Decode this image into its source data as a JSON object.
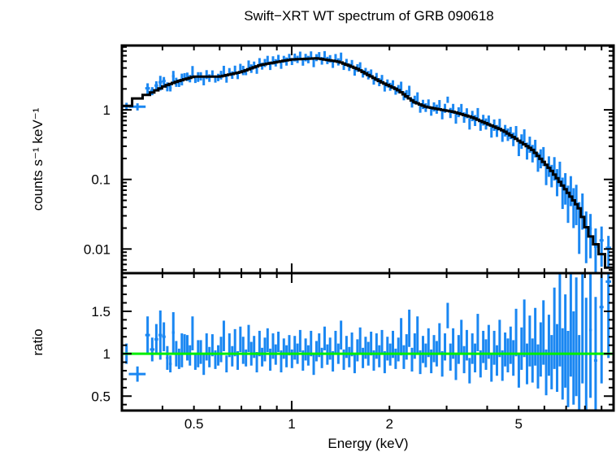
{
  "chart_data": {
    "type": "scatter",
    "title": "Swift−XRT WT spectrum of GRB 090618",
    "colors": {
      "data": "#1a87f2",
      "model": "#000000",
      "ratio_line": "#00ee00",
      "frame": "#000000"
    },
    "xlabel": "Energy (keV)",
    "xscale": "log",
    "xlim": [
      0.3,
      9.8
    ],
    "x_ticks": [
      {
        "value": 0.5,
        "label": "0.5"
      },
      {
        "value": 1,
        "label": "1"
      },
      {
        "value": 2,
        "label": "2"
      },
      {
        "value": 5,
        "label": "5"
      }
    ],
    "panels": [
      {
        "name": "spectrum",
        "ylabel": "counts s⁻¹ keV⁻¹",
        "yscale": "log",
        "ylim": [
          0.0045,
          8.4
        ],
        "y_ticks": [
          {
            "value": 1,
            "label": "1"
          },
          {
            "value": 0.1,
            "label": "0.1"
          },
          {
            "value": 0.01,
            "label": "0.01"
          }
        ],
        "model": {
          "name": "model",
          "style": "step",
          "points": [
            [
              0.3,
              1.0
            ],
            [
              0.33,
              1.42
            ],
            [
              0.37,
              1.76
            ],
            [
              0.41,
              2.24
            ],
            [
              0.45,
              2.6
            ],
            [
              0.5,
              3.0
            ],
            [
              0.6,
              3.0
            ],
            [
              0.7,
              3.5
            ],
            [
              0.8,
              4.4
            ],
            [
              1.0,
              5.3
            ],
            [
              1.2,
              5.5
            ],
            [
              1.4,
              4.9
            ],
            [
              1.59,
              3.9
            ],
            [
              1.89,
              2.5
            ],
            [
              2.12,
              1.95
            ],
            [
              2.38,
              1.3
            ],
            [
              2.6,
              1.1
            ],
            [
              3.17,
              0.93
            ],
            [
              3.6,
              0.78
            ],
            [
              4.5,
              0.5
            ],
            [
              5.5,
              0.27
            ],
            [
              6.3,
              0.135
            ],
            [
              7.1,
              0.064
            ],
            [
              7.7,
              0.038
            ],
            [
              8.2,
              0.017
            ],
            [
              8.9,
              0.0095
            ],
            [
              9.4,
              0.0058
            ],
            [
              9.8,
              0.0045
            ]
          ]
        }
      },
      {
        "name": "ratio",
        "ylabel": "ratio",
        "yscale": "linear",
        "ylim": [
          0.33,
          1.95
        ],
        "y_ticks": [
          {
            "value": 1.5,
            "label": "1.5"
          },
          {
            "value": 1,
            "label": "1"
          },
          {
            "value": 0.5,
            "label": "0.5"
          }
        ],
        "reference_line": 1.0
      }
    ],
    "series_columns": [
      "energy_keV",
      "energy_halfwidth",
      "ratio",
      "ratio_err"
    ],
    "series": [
      [
        0.31,
        0.01,
        1.0,
        0.12
      ],
      [
        0.335,
        0.02,
        0.76,
        0.09
      ],
      [
        0.36,
        0.006,
        1.22,
        0.22
      ],
      [
        0.372,
        0.006,
        1.05,
        0.14
      ],
      [
        0.383,
        0.005,
        1.17,
        0.18
      ],
      [
        0.394,
        0.005,
        1.22,
        0.29
      ],
      [
        0.404,
        0.005,
        1.2,
        0.17
      ],
      [
        0.414,
        0.004,
        0.95,
        0.14
      ],
      [
        0.423,
        0.004,
        0.88,
        0.1
      ],
      [
        0.432,
        0.004,
        1.25,
        0.24
      ],
      [
        0.441,
        0.004,
        1.0,
        0.15
      ],
      [
        0.45,
        0.003,
        0.94,
        0.12
      ],
      [
        0.459,
        0.003,
        1.04,
        0.2
      ],
      [
        0.468,
        0.003,
        1.11,
        0.12
      ],
      [
        0.477,
        0.003,
        1.07,
        0.15
      ],
      [
        0.486,
        0.003,
        0.98,
        0.12
      ],
      [
        0.495,
        0.003,
        1.24,
        0.2
      ],
      [
        0.505,
        0.003,
        0.91,
        0.1
      ],
      [
        0.515,
        0.003,
        1.0,
        0.16
      ],
      [
        0.525,
        0.003,
        1.02,
        0.14
      ],
      [
        0.536,
        0.003,
        0.87,
        0.12
      ],
      [
        0.547,
        0.003,
        1.08,
        0.16
      ],
      [
        0.558,
        0.003,
        0.96,
        0.12
      ],
      [
        0.57,
        0.003,
        1.1,
        0.13
      ],
      [
        0.582,
        0.003,
        0.93,
        0.11
      ],
      [
        0.594,
        0.003,
        0.98,
        0.12
      ],
      [
        0.606,
        0.003,
        1.05,
        0.15
      ],
      [
        0.618,
        0.003,
        1.21,
        0.18
      ],
      [
        0.63,
        0.003,
        0.88,
        0.1
      ],
      [
        0.643,
        0.003,
        1.1,
        0.14
      ],
      [
        0.656,
        0.003,
        0.97,
        0.12
      ],
      [
        0.669,
        0.003,
        1.13,
        0.16
      ],
      [
        0.682,
        0.003,
        0.92,
        0.11
      ],
      [
        0.695,
        0.003,
        1.17,
        0.15
      ],
      [
        0.709,
        0.003,
        1.04,
        0.16
      ],
      [
        0.723,
        0.003,
        0.95,
        0.1
      ],
      [
        0.737,
        0.003,
        1.18,
        0.16
      ],
      [
        0.751,
        0.003,
        1.0,
        0.14
      ],
      [
        0.766,
        0.003,
        1.08,
        0.13
      ],
      [
        0.781,
        0.003,
        0.9,
        0.12
      ],
      [
        0.796,
        0.003,
        1.12,
        0.15
      ],
      [
        0.811,
        0.003,
        0.96,
        0.11
      ],
      [
        0.827,
        0.003,
        1.05,
        0.14
      ],
      [
        0.843,
        0.003,
        1.16,
        0.14
      ],
      [
        0.859,
        0.003,
        0.93,
        0.13
      ],
      [
        0.876,
        0.003,
        1.09,
        0.15
      ],
      [
        0.893,
        0.003,
        0.99,
        0.12
      ],
      [
        0.91,
        0.003,
        1.14,
        0.12
      ],
      [
        0.928,
        0.003,
        0.91,
        0.13
      ],
      [
        0.946,
        0.003,
        1.06,
        0.12
      ],
      [
        0.964,
        0.003,
        0.97,
        0.13
      ],
      [
        0.983,
        0.003,
        1.1,
        0.12
      ],
      [
        1.002,
        0.003,
        0.94,
        0.11
      ],
      [
        1.022,
        0.003,
        1.07,
        0.14
      ],
      [
        1.042,
        0.003,
        1.0,
        0.12
      ],
      [
        1.062,
        0.003,
        1.15,
        0.13
      ],
      [
        1.083,
        0.003,
        0.92,
        0.12
      ],
      [
        1.104,
        0.003,
        1.05,
        0.13
      ],
      [
        1.125,
        0.003,
        0.98,
        0.12
      ],
      [
        1.147,
        0.003,
        1.12,
        0.15
      ],
      [
        1.169,
        0.004,
        0.88,
        0.13
      ],
      [
        1.192,
        0.004,
        1.03,
        0.12
      ],
      [
        1.215,
        0.004,
        1.1,
        0.14
      ],
      [
        1.239,
        0.004,
        0.95,
        0.12
      ],
      [
        1.263,
        0.004,
        1.18,
        0.14
      ],
      [
        1.288,
        0.004,
        0.99,
        0.12
      ],
      [
        1.313,
        0.004,
        1.06,
        0.13
      ],
      [
        1.339,
        0.004,
        0.91,
        0.12
      ],
      [
        1.365,
        0.004,
        1.13,
        0.14
      ],
      [
        1.392,
        0.004,
        1.0,
        0.12
      ],
      [
        1.419,
        0.004,
        1.22,
        0.17
      ],
      [
        1.447,
        0.004,
        0.93,
        0.12
      ],
      [
        1.475,
        0.004,
        1.08,
        0.13
      ],
      [
        1.504,
        0.004,
        0.96,
        0.12
      ],
      [
        1.533,
        0.004,
        1.11,
        0.14
      ],
      [
        1.563,
        0.004,
        0.89,
        0.12
      ],
      [
        1.594,
        0.004,
        1.04,
        0.13
      ],
      [
        1.625,
        0.004,
        1.16,
        0.15
      ],
      [
        1.657,
        0.004,
        0.95,
        0.12
      ],
      [
        1.689,
        0.004,
        1.07,
        0.13
      ],
      [
        1.722,
        0.005,
        1.0,
        0.14
      ],
      [
        1.756,
        0.005,
        1.12,
        0.14
      ],
      [
        1.79,
        0.005,
        0.92,
        0.12
      ],
      [
        1.825,
        0.005,
        1.09,
        0.15
      ],
      [
        1.861,
        0.005,
        0.97,
        0.13
      ],
      [
        1.897,
        0.005,
        1.14,
        0.14
      ],
      [
        1.934,
        0.005,
        0.9,
        0.13
      ],
      [
        1.972,
        0.005,
        1.06,
        0.14
      ],
      [
        2.011,
        0.005,
        0.99,
        0.13
      ],
      [
        2.05,
        0.005,
        1.11,
        0.16
      ],
      [
        2.09,
        0.006,
        0.94,
        0.12
      ],
      [
        2.131,
        0.006,
        1.05,
        0.14
      ],
      [
        2.173,
        0.006,
        1.2,
        0.22
      ],
      [
        2.215,
        0.006,
        0.96,
        0.14
      ],
      [
        2.258,
        0.006,
        1.08,
        0.15
      ],
      [
        2.302,
        0.006,
        1.3,
        0.22
      ],
      [
        2.347,
        0.006,
        0.93,
        0.14
      ],
      [
        2.393,
        0.006,
        1.09,
        0.15
      ],
      [
        2.44,
        0.006,
        1.22,
        0.22
      ],
      [
        2.488,
        0.006,
        0.9,
        0.14
      ],
      [
        2.537,
        0.006,
        1.05,
        0.16
      ],
      [
        2.587,
        0.007,
        0.98,
        0.14
      ],
      [
        2.638,
        0.007,
        1.13,
        0.17
      ],
      [
        2.69,
        0.007,
        0.91,
        0.14
      ],
      [
        2.743,
        0.007,
        1.06,
        0.16
      ],
      [
        2.797,
        0.007,
        1.0,
        0.15
      ],
      [
        2.852,
        0.007,
        1.18,
        0.18
      ],
      [
        2.908,
        0.007,
        0.88,
        0.15
      ],
      [
        2.965,
        0.008,
        1.08,
        0.16
      ],
      [
        3.023,
        0.008,
        1.45,
        0.15
      ],
      [
        3.082,
        0.008,
        0.96,
        0.16
      ],
      [
        3.142,
        0.008,
        1.12,
        0.18
      ],
      [
        3.204,
        0.008,
        0.85,
        0.16
      ],
      [
        3.267,
        0.008,
        1.05,
        0.17
      ],
      [
        3.331,
        0.009,
        1.2,
        0.2
      ],
      [
        3.396,
        0.009,
        0.93,
        0.16
      ],
      [
        3.462,
        0.009,
        1.1,
        0.18
      ],
      [
        3.53,
        0.009,
        0.8,
        0.15
      ],
      [
        3.6,
        0.009,
        1.06,
        0.18
      ],
      [
        3.67,
        0.01,
        0.95,
        0.17
      ],
      [
        3.742,
        0.01,
        1.25,
        0.22
      ],
      [
        3.816,
        0.01,
        0.88,
        0.16
      ],
      [
        3.89,
        0.01,
        1.08,
        0.19
      ],
      [
        3.966,
        0.01,
        0.99,
        0.18
      ],
      [
        4.044,
        0.011,
        1.14,
        0.2
      ],
      [
        4.123,
        0.011,
        0.84,
        0.17
      ],
      [
        4.204,
        0.011,
        1.07,
        0.2
      ],
      [
        4.286,
        0.011,
        0.92,
        0.18
      ],
      [
        4.37,
        0.012,
        1.18,
        0.22
      ],
      [
        4.456,
        0.012,
        0.86,
        0.18
      ],
      [
        4.543,
        0.012,
        1.05,
        0.2
      ],
      [
        4.632,
        0.012,
        0.98,
        0.2
      ],
      [
        4.723,
        0.013,
        1.1,
        0.22
      ],
      [
        4.815,
        0.013,
        0.95,
        0.21
      ],
      [
        4.91,
        0.013,
        1.25,
        0.28
      ],
      [
        5.006,
        0.014,
        0.8,
        0.2
      ],
      [
        5.104,
        0.014,
        1.06,
        0.25
      ],
      [
        5.204,
        0.014,
        1.3,
        0.34
      ],
      [
        5.306,
        0.015,
        0.88,
        0.24
      ],
      [
        5.41,
        0.015,
        1.15,
        0.3
      ],
      [
        5.516,
        0.016,
        0.92,
        0.26
      ],
      [
        5.624,
        0.016,
        1.2,
        0.34
      ],
      [
        5.734,
        0.017,
        0.85,
        0.26
      ],
      [
        5.846,
        0.017,
        1.05,
        0.32
      ],
      [
        5.961,
        0.018,
        1.25,
        0.38
      ],
      [
        6.077,
        0.018,
        0.78,
        0.27
      ],
      [
        6.196,
        0.019,
        1.1,
        0.36
      ],
      [
        6.317,
        0.02,
        0.9,
        0.32
      ],
      [
        6.441,
        0.021,
        1.3,
        0.48
      ],
      [
        6.567,
        0.022,
        0.95,
        0.4
      ],
      [
        6.696,
        0.023,
        1.4,
        0.55
      ],
      [
        6.827,
        0.024,
        0.88,
        0.42
      ],
      [
        6.961,
        0.025,
        1.15,
        0.55
      ],
      [
        7.097,
        0.027,
        0.82,
        0.45
      ],
      [
        7.237,
        0.029,
        1.35,
        0.62
      ],
      [
        7.379,
        0.031,
        0.95,
        0.55
      ],
      [
        7.524,
        0.034,
        1.2,
        0.7
      ],
      [
        7.68,
        0.04,
        0.72,
        0.5
      ],
      [
        7.86,
        0.05,
        1.4,
        0.75
      ],
      [
        8.07,
        0.06,
        0.98,
        0.68
      ],
      [
        8.32,
        0.08,
        1.28,
        0.8
      ],
      [
        8.63,
        0.1,
        0.92,
        0.75
      ],
      [
        9.0,
        0.13,
        1.55,
        0.9
      ],
      [
        9.45,
        0.18,
        1.85,
        0.9
      ]
    ]
  }
}
